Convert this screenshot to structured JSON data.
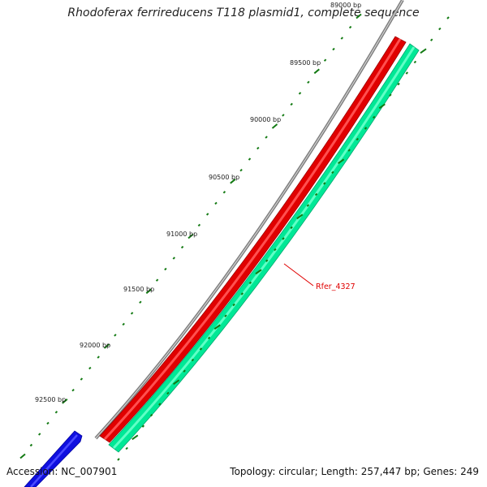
{
  "title": "Rhodoferax ferrireducens T118 plasmid1, complete sequence",
  "footer": {
    "accession": "Accession: NC_007901",
    "summary": "Topology: circular; Length: 257,447 bp; Genes: 249"
  },
  "ruler": {
    "labels": [
      "89000 bp",
      "89500 bp",
      "90000 bp",
      "90500 bp",
      "91000 bp",
      "91500 bp",
      "92000 bp",
      "92500 bp"
    ]
  },
  "genes": [
    {
      "name": "Rfer_4327",
      "color": "#e00000",
      "strand": "forward"
    }
  ],
  "colors": {
    "backbone": "#808080",
    "forward_feature": "#e00000",
    "reverse_feature": "#00e896",
    "other_feature": "#1010e0",
    "ticks": "#137a13"
  }
}
